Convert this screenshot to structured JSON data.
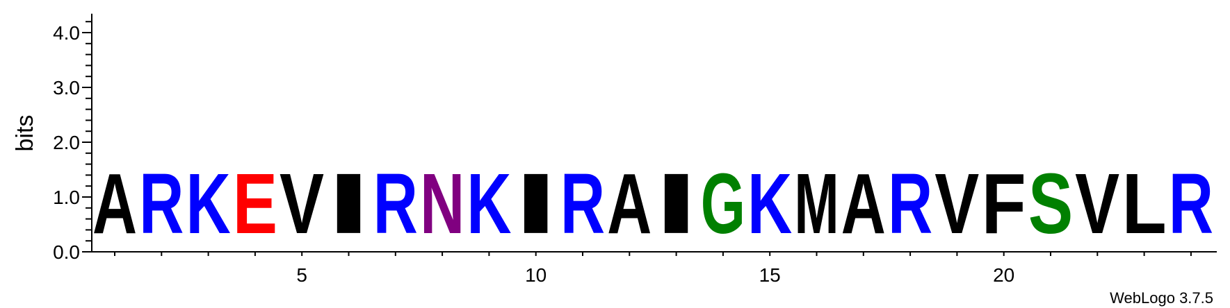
{
  "chart_data": {
    "type": "sequence-logo",
    "ylabel": "bits",
    "ylim": [
      0,
      4.32
    ],
    "y_ticks": [
      {
        "value": 0.0,
        "label": "0.0"
      },
      {
        "value": 1.0,
        "label": "1.0"
      },
      {
        "value": 2.0,
        "label": "2.0"
      },
      {
        "value": 3.0,
        "label": "3.0"
      },
      {
        "value": 4.0,
        "label": "4.0"
      }
    ],
    "x_range": [
      1,
      24
    ],
    "x_ticks": [
      {
        "value": 5,
        "label": "5"
      },
      {
        "value": 10,
        "label": "10"
      },
      {
        "value": 15,
        "label": "15"
      },
      {
        "value": 20,
        "label": "20"
      }
    ],
    "positions": [
      {
        "pos": 1,
        "letter": "A",
        "bits": 1.75,
        "color": "#000000"
      },
      {
        "pos": 2,
        "letter": "R",
        "bits": 1.75,
        "color": "#0000ff"
      },
      {
        "pos": 3,
        "letter": "K",
        "bits": 1.75,
        "color": "#0000ff"
      },
      {
        "pos": 4,
        "letter": "E",
        "bits": 1.75,
        "color": "#ff0000"
      },
      {
        "pos": 5,
        "letter": "V",
        "bits": 1.75,
        "color": "#000000"
      },
      {
        "pos": 6,
        "letter": "I",
        "bits": 1.75,
        "color": "#000000"
      },
      {
        "pos": 7,
        "letter": "R",
        "bits": 1.75,
        "color": "#0000ff"
      },
      {
        "pos": 8,
        "letter": "N",
        "bits": 1.75,
        "color": "#800080"
      },
      {
        "pos": 9,
        "letter": "K",
        "bits": 1.75,
        "color": "#0000ff"
      },
      {
        "pos": 10,
        "letter": "I",
        "bits": 1.75,
        "color": "#000000"
      },
      {
        "pos": 11,
        "letter": "R",
        "bits": 1.75,
        "color": "#0000ff"
      },
      {
        "pos": 12,
        "letter": "A",
        "bits": 1.75,
        "color": "#000000"
      },
      {
        "pos": 13,
        "letter": "I",
        "bits": 1.75,
        "color": "#000000"
      },
      {
        "pos": 14,
        "letter": "G",
        "bits": 1.75,
        "color": "#008000"
      },
      {
        "pos": 15,
        "letter": "K",
        "bits": 1.75,
        "color": "#0000ff"
      },
      {
        "pos": 16,
        "letter": "M",
        "bits": 1.75,
        "color": "#000000"
      },
      {
        "pos": 17,
        "letter": "A",
        "bits": 1.75,
        "color": "#000000"
      },
      {
        "pos": 18,
        "letter": "R",
        "bits": 1.75,
        "color": "#0000ff"
      },
      {
        "pos": 19,
        "letter": "V",
        "bits": 1.75,
        "color": "#000000"
      },
      {
        "pos": 20,
        "letter": "F",
        "bits": 1.75,
        "color": "#000000"
      },
      {
        "pos": 21,
        "letter": "S",
        "bits": 1.75,
        "color": "#008000"
      },
      {
        "pos": 22,
        "letter": "V",
        "bits": 1.75,
        "color": "#000000"
      },
      {
        "pos": 23,
        "letter": "L",
        "bits": 1.75,
        "color": "#000000"
      },
      {
        "pos": 24,
        "letter": "R",
        "bits": 1.75,
        "color": "#0000ff"
      }
    ]
  },
  "footer": {
    "credit": "WebLogo 3.7.5"
  }
}
